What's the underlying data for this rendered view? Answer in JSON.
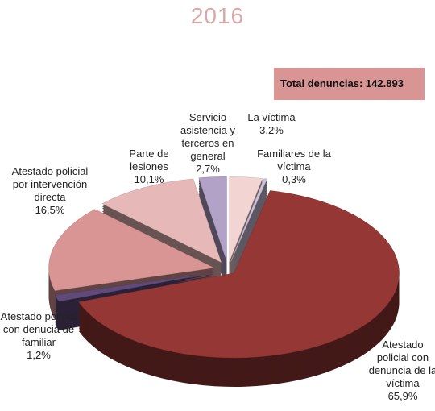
{
  "chart_data": {
    "type": "pie3d",
    "title": "2016",
    "total_label": "Total denuncias: 142.893",
    "categories": [
      "La víctima",
      "Familiares de la víctima",
      "Atestado policial con denuncia de la víctima",
      "Atestado policial con denucia de familiar",
      "Atestado policial por intervención directa",
      "Parte de lesiones",
      "Servicio asistencia y terceros en general"
    ],
    "values": [
      3.2,
      0.3,
      65.9,
      1.2,
      16.5,
      10.1,
      2.7
    ],
    "value_labels": [
      "3,2%",
      "0,3%",
      "65,9%",
      "1,2%",
      "16,5%",
      "10,1%",
      "2,7%"
    ],
    "colors": [
      "#f2d4d3",
      "#ccc1da",
      "#953735",
      "#604a7b",
      "#d99594",
      "#e6b9b8",
      "#b3a2c7"
    ]
  }
}
